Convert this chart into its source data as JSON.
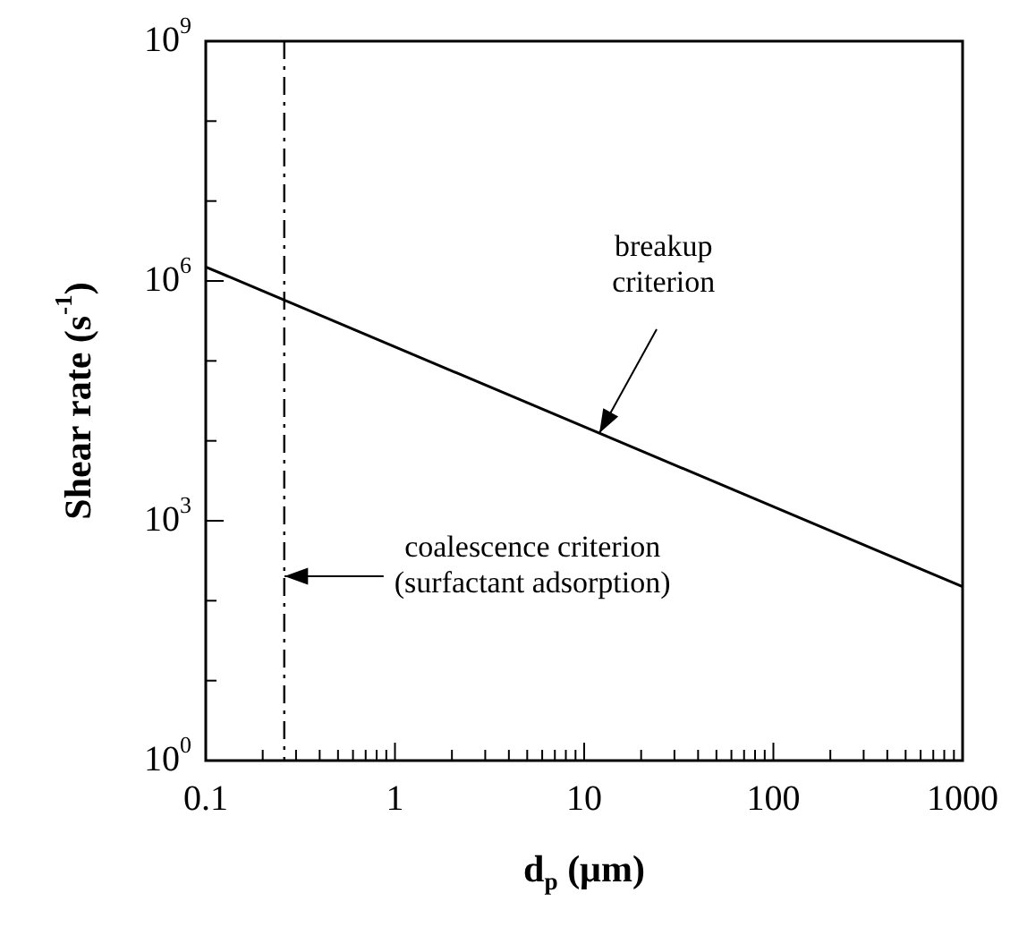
{
  "chart_data": {
    "type": "line",
    "xlabel": "d$_{p}$ (μm)",
    "ylabel": "Shear rate (s$^{-1}$)",
    "log": "xy",
    "grid": false,
    "legend": false,
    "marker": "none",
    "line_style": "solid",
    "xlim": [
      0.1,
      1000
    ],
    "ylim": [
      1,
      1000000000
    ],
    "xticks": [
      0.1,
      {
        "value": 0.2,
        "label": null
      },
      {
        "value": 0.3,
        "label": null
      },
      {
        "value": 0.4,
        "label": null
      },
      {
        "value": 0.5,
        "label": null
      },
      {
        "value": 0.6,
        "label": null
      },
      {
        "value": 0.7,
        "label": null
      },
      {
        "value": 0.8,
        "label": null
      },
      {
        "value": 0.9,
        "label": null
      },
      1,
      {
        "value": 2,
        "label": null
      },
      {
        "value": 3,
        "label": null
      },
      {
        "value": 4,
        "label": null
      },
      {
        "value": 5,
        "label": null
      },
      {
        "value": 6,
        "label": null
      },
      {
        "value": 7,
        "label": null
      },
      {
        "value": 8,
        "label": null
      },
      {
        "value": 9,
        "label": null
      },
      10,
      {
        "value": 20,
        "label": null
      },
      {
        "value": 30,
        "label": null
      },
      {
        "value": 40,
        "label": null
      },
      {
        "value": 50,
        "label": null
      },
      {
        "value": 60,
        "label": null
      },
      {
        "value": 70,
        "label": null
      },
      {
        "value": 80,
        "label": null
      },
      {
        "value": 90,
        "label": null
      },
      100,
      {
        "value": 200,
        "label": null
      },
      {
        "value": 300,
        "label": null
      },
      {
        "value": 400,
        "label": null
      },
      {
        "value": 500,
        "label": null
      },
      {
        "value": 600,
        "label": null
      },
      {
        "value": 700,
        "label": null
      },
      {
        "value": 800,
        "label": null
      },
      {
        "value": 900,
        "label": null
      },
      1000
    ],
    "yticks": [
      {
        "value": 1,
        "label": "10$^{0}$"
      },
      {
        "value": 10,
        "label": null
      },
      {
        "value": 100,
        "label": null
      },
      {
        "value": 1000,
        "label": "10$^{3}$"
      },
      {
        "value": 10000,
        "label": null
      },
      {
        "value": 100000,
        "label": null
      },
      {
        "value": 1000000,
        "label": "10$^{6}$"
      },
      {
        "value": 10000000,
        "label": null
      },
      {
        "value": 100000000,
        "label": null
      },
      {
        "value": 1000000000,
        "label": "10$^{9}$"
      }
    ],
    "series": [
      {
        "x": [
          0.1,
          1000
        ],
        "values": [
          1500000,
          150
        ],
        "color": "#000000"
      }
    ],
    "ref_lines": [
      {
        "axis": "x",
        "value": 0.26,
        "line_style": "dashed",
        "color": "#000000"
      }
    ],
    "annotations": [
      {
        "text": "breakup\ncriterion",
        "x": 12,
        "y": 12500
      },
      "coalescence criterion\n(surfactant adsorption)"
    ]
  }
}
